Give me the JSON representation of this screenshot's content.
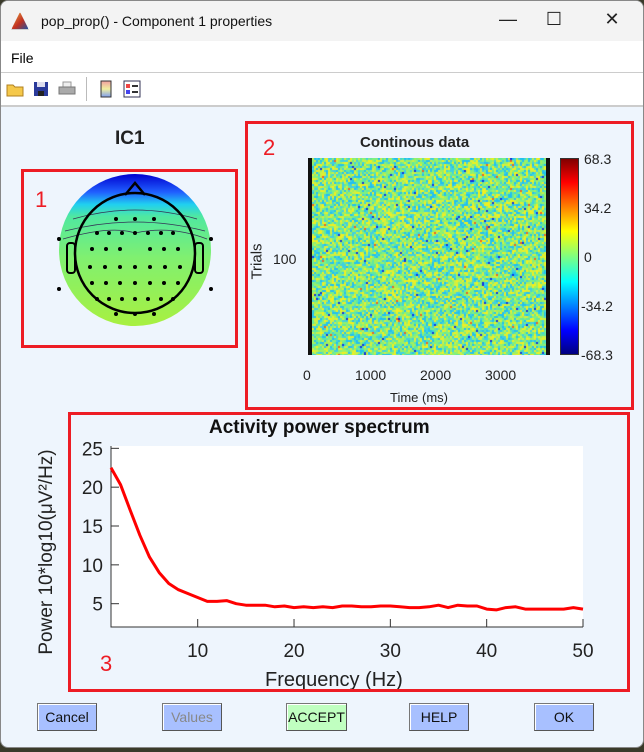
{
  "window": {
    "title": "pop_prop() - Component 1 properties",
    "controls": {
      "minimize": "—",
      "maximize": "☐",
      "close": "✕"
    }
  },
  "menu": {
    "items": [
      {
        "label": "File"
      }
    ]
  },
  "toolbar": {
    "icons": [
      "open-folder-icon",
      "save-icon",
      "print-icon",
      "colorbar-icon",
      "legend-icon"
    ]
  },
  "annotations": [
    "1",
    "2",
    "3"
  ],
  "topoplot": {
    "title": "IC1"
  },
  "erpimage": {
    "title": "Continous data",
    "ylabel": "Trials",
    "yticks": [
      "100"
    ],
    "xlabel": "Time (ms)",
    "xticks": [
      "0",
      "1000",
      "2000",
      "3000"
    ],
    "colorbar_ticks": [
      "68.3",
      "34.2",
      "0",
      "-34.2",
      "-68.3"
    ],
    "colormap": "jet"
  },
  "chart_data": {
    "type": "line",
    "title": "Activity power spectrum",
    "xlabel": "Frequency (Hz)",
    "ylabel": "Power 10*log10(μV²/Hz)",
    "xlim": [
      1,
      50
    ],
    "ylim": [
      2,
      25.3
    ],
    "xticks": [
      "10",
      "20",
      "30",
      "40",
      "50"
    ],
    "yticks": [
      "5",
      "10",
      "15",
      "20",
      "25"
    ],
    "grid": false,
    "series": [
      {
        "color": "#ff0000",
        "x": [
          1,
          2,
          3,
          4,
          5,
          6,
          7,
          8,
          9,
          10,
          11,
          12,
          13,
          14,
          15,
          16,
          17,
          18,
          19,
          20,
          21,
          22,
          23,
          24,
          25,
          26,
          27,
          28,
          29,
          30,
          31,
          32,
          33,
          34,
          35,
          36,
          37,
          38,
          39,
          40,
          41,
          42,
          43,
          44,
          45,
          46,
          47,
          48,
          49,
          50
        ],
        "values": [
          22.5,
          20.3,
          17,
          13.8,
          11,
          9,
          7.6,
          6.8,
          6.3,
          5.8,
          5.3,
          5.3,
          5.4,
          5.0,
          4.8,
          4.8,
          4.8,
          4.6,
          4.7,
          4.5,
          4.6,
          4.5,
          4.6,
          4.5,
          4.7,
          4.7,
          4.6,
          4.6,
          4.7,
          4.7,
          4.6,
          4.5,
          4.5,
          4.6,
          4.8,
          4.5,
          4.8,
          4.7,
          4.7,
          4.3,
          4.2,
          4.5,
          4.6,
          4.3,
          4.3,
          4.3,
          4.3,
          4.3,
          4.5,
          4.3
        ]
      }
    ]
  },
  "buttons": {
    "cancel": "Cancel",
    "values": "Values",
    "accept": "ACCEPT",
    "help": "HELP",
    "ok": "OK"
  },
  "colors": {
    "annotation": "#ed1c24",
    "button": "#a8c0ff",
    "accept": "#c0ffc0",
    "line": "#ff0000"
  }
}
